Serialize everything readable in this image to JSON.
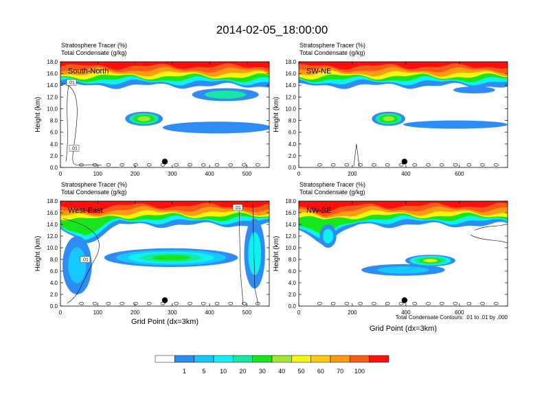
{
  "figure": {
    "title": "2014-02-05_18:00:00",
    "colors": {
      "white": "#ffffff",
      "blue": "#2e8df5",
      "lightblue": "#15c8ff",
      "cyan": "#11f0f0",
      "aqua": "#16e8a2",
      "green": "#16e61b",
      "lime": "#a2e832",
      "yellow": "#f5f50f",
      "gold": "#fdc90d",
      "orange": "#fd9b12",
      "redorange": "#fa5a18",
      "red": "#fb0f0f"
    }
  },
  "chart_data": [
    {
      "type": "heatmap",
      "panel": "South-North",
      "title_line1": "Stratosphere Tracer   (%)",
      "title_line2": "Total Condensate   (g/kg)",
      "xlabel": "",
      "ylabel": "Height (km)",
      "xlim": [
        0,
        560
      ],
      "ylim": [
        0,
        18
      ],
      "xticks": [
        0,
        100,
        200,
        300,
        400,
        500
      ],
      "xtick_labels": [
        "0",
        "100",
        "200",
        "300",
        "400",
        "500"
      ],
      "contour_labels": [
        ".01",
        ".01"
      ],
      "marker": {
        "x": 280,
        "y": 1.0
      }
    },
    {
      "type": "heatmap",
      "panel": "SW-NE",
      "title_line1": "Stratosphere Tracer   (%)",
      "title_line2": "Total Condensate   (g/kg)",
      "xlabel": "",
      "ylabel": "Height (km)",
      "xlim": [
        0,
        780
      ],
      "ylim": [
        0,
        18
      ],
      "xticks": [
        0,
        200,
        400,
        600
      ],
      "xtick_labels": [
        "0",
        "200",
        "400",
        "600"
      ],
      "contour_labels": [],
      "marker": {
        "x": 395,
        "y": 1.0
      }
    },
    {
      "type": "heatmap",
      "panel": "West-East",
      "title_line1": "Stratosphere Tracer   (%)",
      "title_line2": "Total Condensate   (g/kg)",
      "xlabel": "Grid Point (dx=3km)",
      "ylabel": "Height (km)",
      "xlim": [
        0,
        560
      ],
      "ylim": [
        0,
        18
      ],
      "xticks": [
        0,
        100,
        200,
        300,
        400,
        500
      ],
      "xtick_labels": [
        "0",
        "100",
        "200",
        "300",
        "400",
        "500"
      ],
      "contour_labels": [
        ".01",
        ".01"
      ],
      "marker": {
        "x": 280,
        "y": 1.0
      }
    },
    {
      "type": "heatmap",
      "panel": "NW-SE",
      "title_line1": "Stratosphere Tracer   (%)",
      "title_line2": "Total Condensate   (g/kg)",
      "xlabel": "Grid Point (dx=3km)",
      "ylabel": "Height (km)",
      "xlim": [
        0,
        780
      ],
      "ylim": [
        0,
        18
      ],
      "xticks": [
        0,
        200,
        400,
        600
      ],
      "xtick_labels": [
        "0",
        "200",
        "400",
        "600"
      ],
      "contour_labels": [],
      "marker": {
        "x": 395,
        "y": 1.0
      },
      "footnote": "Total Condensate Contours: .01 to .01 by .000"
    }
  ],
  "shared_axes": {
    "yticks": [
      0,
      2,
      4,
      6,
      8,
      10,
      12,
      14,
      16,
      18
    ],
    "ytick_labels": [
      "0.0",
      "2.0",
      "4.0",
      "6.0",
      "8.0",
      "10.0",
      "12.0",
      "14.0",
      "16.0",
      "18.0"
    ]
  },
  "colorbar": {
    "colors": [
      "#ffffff",
      "#2e8df5",
      "#15c8ff",
      "#11f0f0",
      "#16e8a2",
      "#16e61b",
      "#a2e832",
      "#f5f50f",
      "#fdc90d",
      "#fd9b12",
      "#fa5a18",
      "#fb0f0f"
    ],
    "labels": [
      "1",
      "5",
      "10",
      "20",
      "30",
      "40",
      "50",
      "60",
      "70",
      "100"
    ]
  }
}
